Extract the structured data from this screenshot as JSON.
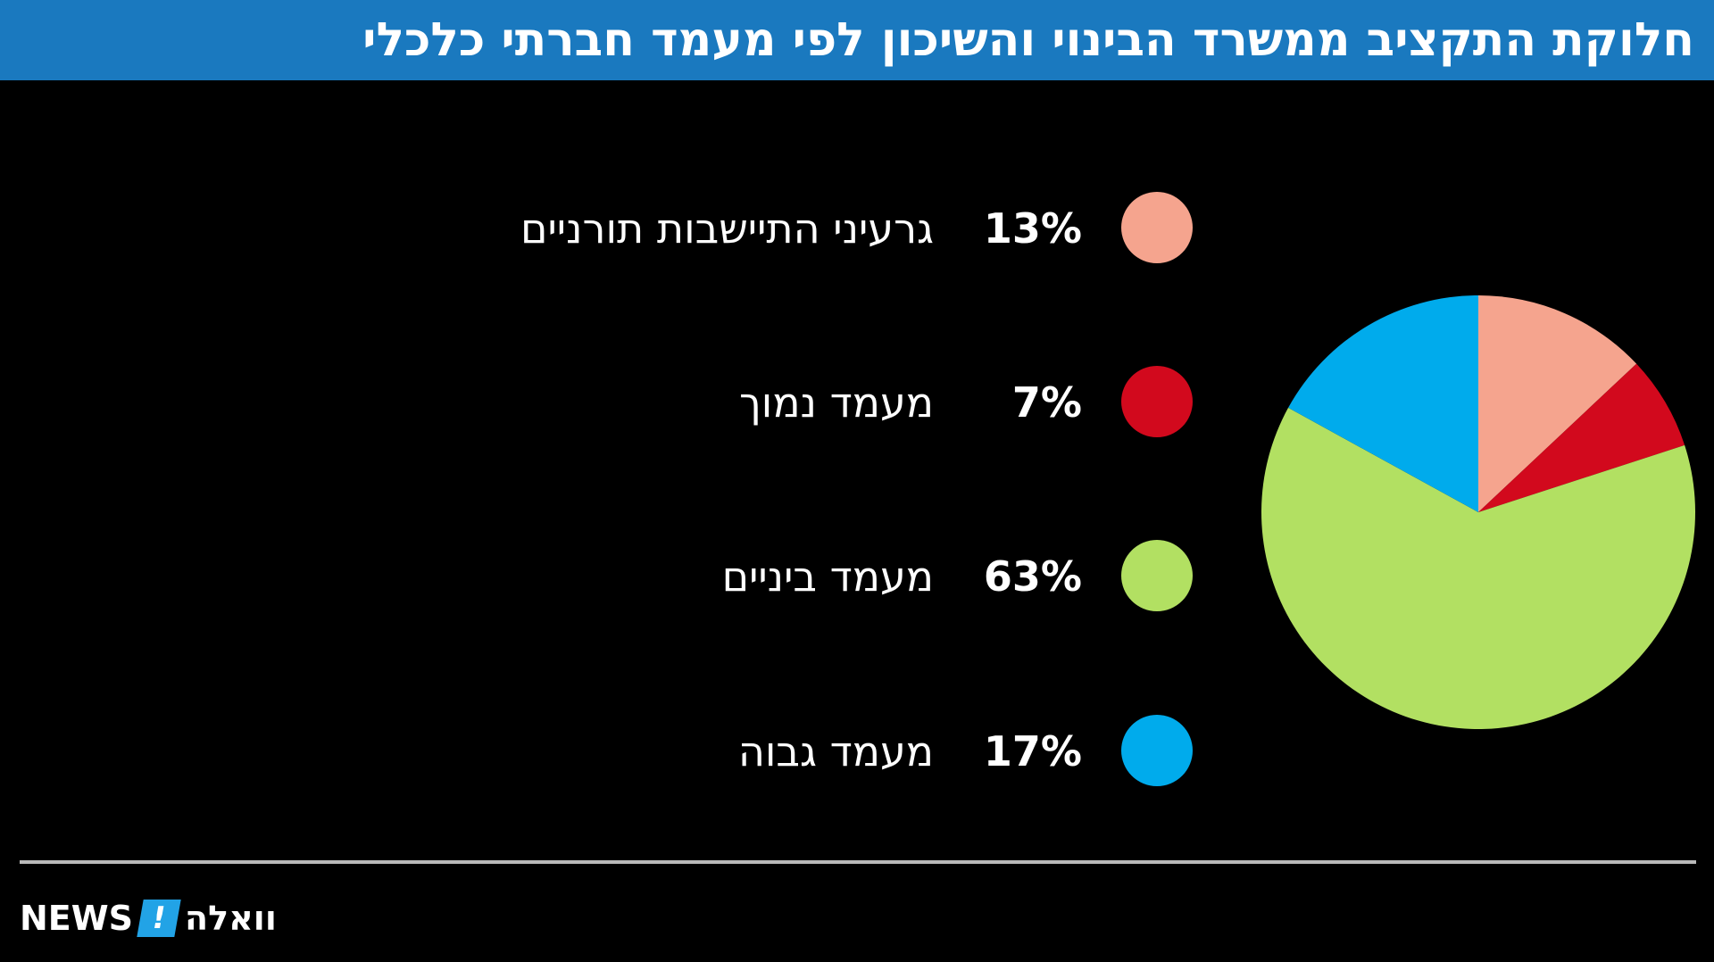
{
  "title": "חלוקת התקציב ממשרד הבינוי והשיכון לפי מעמד חברתי כלכלי",
  "logo": {
    "news": "NEWS",
    "mark": "!",
    "brand": "וואלה"
  },
  "chart_data": {
    "type": "pie",
    "title": "חלוקת התקציב ממשרד הבינוי והשיכון לפי מעמד חברתי כלכלי",
    "slices": [
      {
        "label": "גרעיני התיישבות תורניים",
        "value": 13,
        "value_label": "13%",
        "color": "#f5a48e"
      },
      {
        "label": "מעמד נמוך",
        "value": 7,
        "value_label": "7%",
        "color": "#d2091d"
      },
      {
        "label": "מעמד ביניים",
        "value": 63,
        "value_label": "63%",
        "color": "#b2e062"
      },
      {
        "label": "מעמד גבוה",
        "value": 17,
        "value_label": "17%",
        "color": "#00abec"
      }
    ],
    "start": "12 o'clock",
    "direction": "clockwise",
    "legend": "left"
  }
}
